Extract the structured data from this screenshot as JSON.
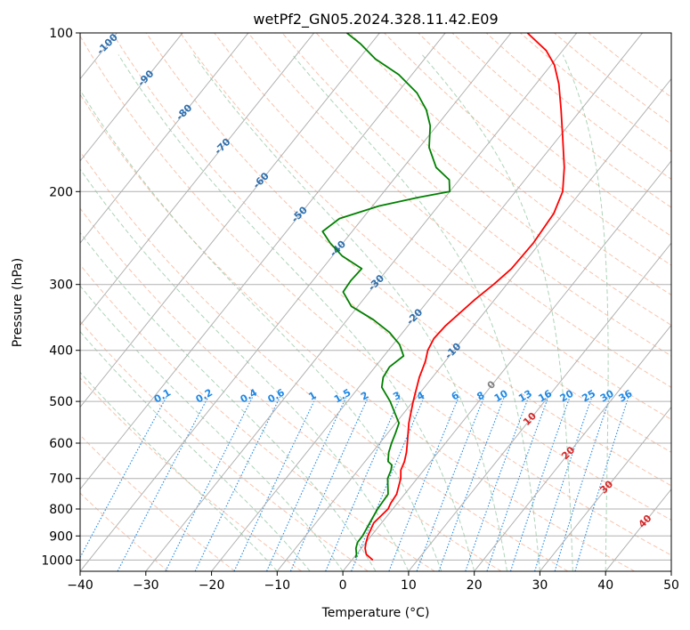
{
  "chart_data": {
    "type": "line",
    "diagram": "skew-t log-p",
    "title": "wetPf2_GN05.2024.328.11.42.E09",
    "xlabel": "Temperature (°C)",
    "ylabel": "Pressure (hPa)",
    "xlim": [
      -40,
      50
    ],
    "ylim": [
      1050,
      100
    ],
    "y_scale": "log",
    "grid": true,
    "x_ticks": [
      -40,
      -30,
      -20,
      -10,
      0,
      10,
      20,
      30,
      40,
      50
    ],
    "y_ticks": [
      100,
      200,
      300,
      400,
      500,
      600,
      700,
      800,
      900,
      1000
    ],
    "colors": {
      "temperature": "#ff0000",
      "dewpoint": "#008000",
      "dry_adiabats": "#f4a582",
      "moist_adiabats": "#92c5a0",
      "mixing_ratio": "#1e88e5",
      "isotherm_labels": "#2c6fb0",
      "freezing_label": "#808080",
      "warm_isotherm_labels": "#d62728"
    },
    "series": [
      {
        "points": [
          [
            1000,
            3.2
          ],
          [
            975,
            1.5
          ],
          [
            950,
            0.6
          ],
          [
            925,
            0.0
          ],
          [
            900,
            -0.5
          ],
          [
            850,
            -1.2
          ],
          [
            800,
            -0.7
          ],
          [
            780,
            -1.0
          ],
          [
            750,
            -1.2
          ],
          [
            700,
            -2.5
          ],
          [
            675,
            -3.5
          ],
          [
            650,
            -4.0
          ],
          [
            625,
            -4.8
          ],
          [
            600,
            -5.8
          ],
          [
            550,
            -8.0
          ],
          [
            500,
            -10.0
          ],
          [
            450,
            -12.0
          ],
          [
            420,
            -13.0
          ],
          [
            400,
            -14.0
          ],
          [
            380,
            -14.5
          ],
          [
            360,
            -14.3
          ],
          [
            350,
            -14.0
          ],
          [
            320,
            -13.0
          ],
          [
            300,
            -12.0
          ],
          [
            280,
            -11.2
          ],
          [
            250,
            -11.0
          ],
          [
            220,
            -11.5
          ],
          [
            200,
            -12.8
          ],
          [
            180,
            -15.5
          ],
          [
            160,
            -19.0
          ],
          [
            140,
            -23.0
          ],
          [
            125,
            -26.5
          ],
          [
            115,
            -29.5
          ],
          [
            108,
            -32.5
          ],
          [
            100,
            -37.5
          ]
        ]
      },
      {
        "points": [
          [
            990,
            0.3
          ],
          [
            975,
            0.0
          ],
          [
            950,
            -0.8
          ],
          [
            925,
            -1.3
          ],
          [
            900,
            -1.3
          ],
          [
            850,
            -1.8
          ],
          [
            800,
            -2.3
          ],
          [
            750,
            -2.5
          ],
          [
            700,
            -4.5
          ],
          [
            675,
            -5.0
          ],
          [
            660,
            -5.5
          ],
          [
            650,
            -6.5
          ],
          [
            625,
            -7.5
          ],
          [
            600,
            -8.2
          ],
          [
            575,
            -8.8
          ],
          [
            550,
            -9.5
          ],
          [
            500,
            -13.5
          ],
          [
            470,
            -16.5
          ],
          [
            450,
            -17.5
          ],
          [
            430,
            -17.8
          ],
          [
            410,
            -17.0
          ],
          [
            390,
            -19.0
          ],
          [
            370,
            -22.0
          ],
          [
            350,
            -26.0
          ],
          [
            330,
            -31.0
          ],
          [
            310,
            -34.0
          ],
          [
            295,
            -34.2
          ],
          [
            280,
            -34.0
          ],
          [
            265,
            -38.5
          ],
          [
            250,
            -42.0
          ],
          [
            238,
            -44.5
          ],
          [
            225,
            -43.5
          ],
          [
            213,
            -39.0
          ],
          [
            205,
            -34.0
          ],
          [
            200,
            -30.0
          ],
          [
            190,
            -31.5
          ],
          [
            180,
            -35.0
          ],
          [
            165,
            -38.5
          ],
          [
            150,
            -41.0
          ],
          [
            140,
            -43.5
          ],
          [
            130,
            -47.0
          ],
          [
            120,
            -52.0
          ],
          [
            112,
            -57.5
          ],
          [
            105,
            -61.5
          ],
          [
            100,
            -65.0
          ]
        ]
      }
    ],
    "isotherm_labels": [
      "-100",
      "-90",
      "-80",
      "-70",
      "-60",
      "-50",
      "-40",
      "-30",
      "-20",
      "-10",
      "0",
      "10",
      "20",
      "30",
      "40"
    ],
    "mixing_ratio_labels": [
      "0.1",
      "0.2",
      "0.4",
      "0.6",
      "1",
      "1.5",
      "2",
      "3",
      "4",
      "6",
      "8",
      "10",
      "13",
      "16",
      "20",
      "25",
      "30",
      "36"
    ]
  }
}
